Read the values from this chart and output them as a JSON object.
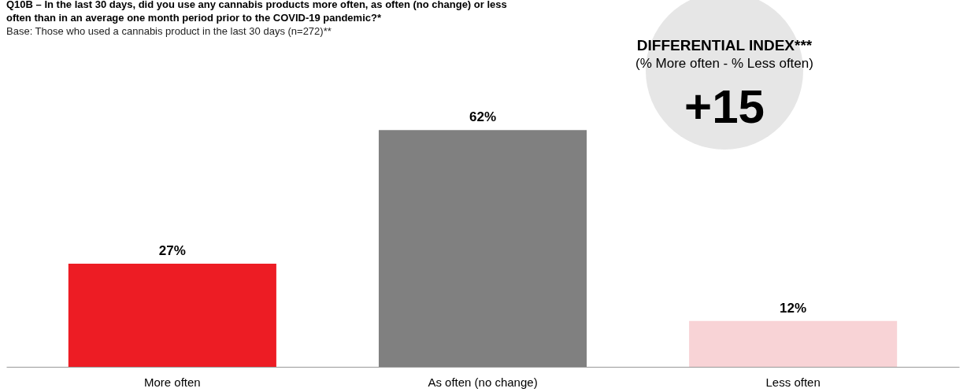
{
  "chart_data": {
    "type": "bar",
    "title": "Q10B – In the last 30 days, did you use any cannabis products more often, as often (no change) or less often than in an average one month period prior to the COVID-19 pandemic?*",
    "subtitle": "Base: Those who used a cannabis product in the last 30 days (n=272)**",
    "categories": [
      "More often",
      "As often (no change)",
      "Less often"
    ],
    "values": [
      27,
      62,
      12
    ],
    "value_labels": [
      "27%",
      "62%",
      "12%"
    ],
    "colors": [
      "#ed1c24",
      "#808080",
      "#f8d3d6"
    ],
    "annotations": [
      "DIFFERENTIAL INDEX***",
      "(% More often - % Less often)",
      "+15"
    ]
  }
}
